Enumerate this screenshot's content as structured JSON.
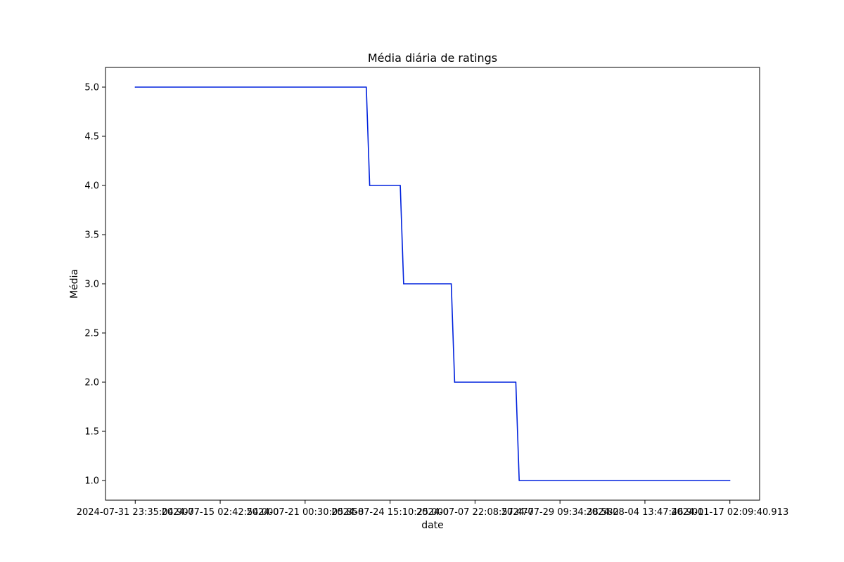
{
  "chart_data": {
    "type": "line",
    "title": "Média diária de ratings",
    "xlabel": "date",
    "ylabel": "Média",
    "ylim": [
      0.8,
      5.2
    ],
    "xlim": [
      -0.35,
      7.35
    ],
    "line_color": "#0022dd",
    "x_tick_labels": [
      "2024-07-31 23:35:04.907",
      "2024-07-15 02:42:54.000",
      "2024-07-21 00:30:05.858",
      "2024-07-24 15:10:25.000",
      "2024-07-07 22:08:57.477",
      "2024-07-29 09:34:38.582",
      "2024-08-04 13:47:46.901",
      "2024-01-17 02:09:40.913"
    ],
    "y_ticks": [
      "1.0",
      "1.5",
      "2.0",
      "2.5",
      "3.0",
      "3.5",
      "4.0",
      "4.5",
      "5.0"
    ],
    "y_tick_values": [
      1.0,
      1.5,
      2.0,
      2.5,
      3.0,
      3.5,
      4.0,
      4.5,
      5.0
    ],
    "series": [
      {
        "name": "Média",
        "points": [
          {
            "x": 0,
            "y": 5.0
          },
          {
            "x": 2.72,
            "y": 5.0
          },
          {
            "x": 2.76,
            "y": 4.0
          },
          {
            "x": 3.12,
            "y": 4.0
          },
          {
            "x": 3.16,
            "y": 3.0
          },
          {
            "x": 3.72,
            "y": 3.0
          },
          {
            "x": 3.76,
            "y": 2.0
          },
          {
            "x": 4.48,
            "y": 2.0
          },
          {
            "x": 4.52,
            "y": 1.0
          },
          {
            "x": 7.0,
            "y": 1.0
          }
        ]
      }
    ]
  }
}
